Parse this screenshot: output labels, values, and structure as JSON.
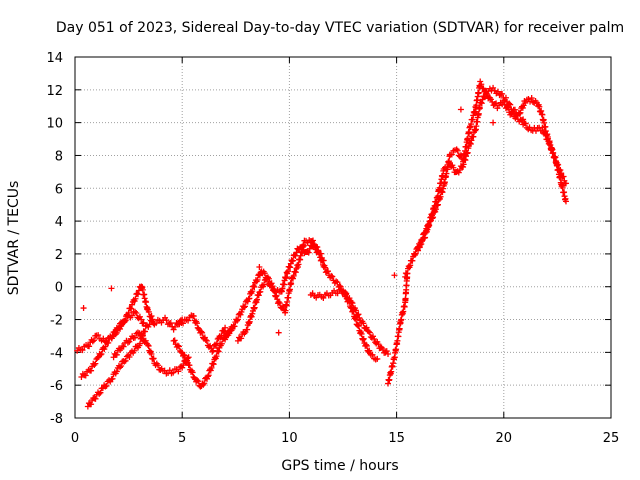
{
  "chart_data": {
    "type": "scatter",
    "title": "Day 051 of 2023, Sidereal Day-to-day VTEC variation (SDTVAR) for receiver palm",
    "xlabel": "GPS time / hours",
    "ylabel": "SDTVAR / TECUs",
    "xlim": [
      0,
      25
    ],
    "ylim": [
      -8,
      14
    ],
    "xticks": [
      0,
      5,
      10,
      15,
      20,
      25
    ],
    "yticks": [
      -8,
      -6,
      -4,
      -2,
      0,
      2,
      4,
      6,
      8,
      10,
      12,
      14
    ],
    "grid": true,
    "marker": "+",
    "color": "#ff0000",
    "series": [
      {
        "name": "SDTVAR",
        "tracks": [
          [
            [
              0.1,
              -3.9
            ],
            [
              0.6,
              -3.6
            ],
            [
              1.0,
              -3.0
            ],
            [
              1.4,
              -3.3
            ],
            [
              1.8,
              -3.0
            ],
            [
              2.3,
              -2.1
            ],
            [
              2.7,
              -1.0
            ],
            [
              3.1,
              0.1
            ],
            [
              3.4,
              -1.5
            ],
            [
              3.7,
              -2.2
            ],
            [
              4.2,
              -2.0
            ],
            [
              4.6,
              -2.5
            ],
            [
              5.0,
              -2.0
            ]
          ],
          [
            [
              0.3,
              -5.5
            ],
            [
              0.7,
              -5.1
            ],
            [
              1.1,
              -4.3
            ],
            [
              1.5,
              -3.4
            ],
            [
              1.9,
              -2.7
            ],
            [
              2.3,
              -2.0
            ],
            [
              2.8,
              -1.6
            ],
            [
              3.2,
              -2.2
            ]
          ],
          [
            [
              0.6,
              -7.3
            ],
            [
              0.9,
              -6.8
            ],
            [
              1.3,
              -6.2
            ],
            [
              1.7,
              -5.6
            ],
            [
              2.0,
              -5.0
            ],
            [
              2.3,
              -4.5
            ],
            [
              2.6,
              -4.1
            ],
            [
              3.0,
              -3.5
            ],
            [
              3.3,
              -2.5
            ],
            [
              3.6,
              -2.1
            ]
          ],
          [
            [
              1.8,
              -4.3
            ],
            [
              2.2,
              -3.6
            ],
            [
              2.6,
              -3.2
            ],
            [
              3.0,
              -2.8
            ],
            [
              3.4,
              -3.6
            ],
            [
              3.7,
              -4.6
            ],
            [
              4.1,
              -5.2
            ],
            [
              4.5,
              -5.2
            ],
            [
              4.9,
              -5.0
            ],
            [
              5.3,
              -4.3
            ]
          ],
          [
            [
              4.6,
              -3.3
            ],
            [
              5.0,
              -4.0
            ],
            [
              5.3,
              -4.8
            ],
            [
              5.6,
              -5.6
            ],
            [
              5.9,
              -6.1
            ],
            [
              6.2,
              -5.4
            ],
            [
              6.5,
              -4.5
            ],
            [
              6.8,
              -3.5
            ],
            [
              7.1,
              -2.9
            ],
            [
              7.4,
              -2.4
            ]
          ],
          [
            [
              4.8,
              -2.3
            ],
            [
              5.2,
              -2.0
            ],
            [
              5.5,
              -1.8
            ],
            [
              5.8,
              -2.6
            ],
            [
              6.1,
              -3.3
            ],
            [
              6.4,
              -3.9
            ],
            [
              6.7,
              -3.2
            ],
            [
              7.0,
              -2.5
            ]
          ],
          [
            [
              7.0,
              -3.1
            ],
            [
              7.4,
              -2.4
            ],
            [
              7.8,
              -1.4
            ],
            [
              8.1,
              -0.7
            ],
            [
              8.4,
              0.2
            ],
            [
              8.7,
              1.0
            ],
            [
              9.0,
              0.5
            ],
            [
              9.3,
              -0.2
            ],
            [
              9.6,
              -0.4
            ],
            [
              9.9,
              0.9
            ],
            [
              10.2,
              1.8
            ],
            [
              10.5,
              2.5
            ],
            [
              10.8,
              2.0
            ],
            [
              11.1,
              2.6
            ],
            [
              11.4,
              1.9
            ],
            [
              11.7,
              1.0
            ],
            [
              12.0,
              0.5
            ],
            [
              12.3,
              0.1
            ],
            [
              12.6,
              -0.6
            ]
          ],
          [
            [
              7.6,
              -3.3
            ],
            [
              8.0,
              -2.6
            ],
            [
              8.3,
              -1.5
            ],
            [
              8.6,
              -0.3
            ],
            [
              8.9,
              0.4
            ],
            [
              9.2,
              0.0
            ],
            [
              9.5,
              -1.0
            ],
            [
              9.8,
              -1.5
            ],
            [
              10.1,
              0.4
            ],
            [
              10.4,
              1.3
            ],
            [
              10.7,
              2.7
            ],
            [
              11.0,
              2.9
            ],
            [
              11.3,
              2.3
            ],
            [
              11.6,
              1.6
            ]
          ],
          [
            [
              11.0,
              -0.5
            ],
            [
              11.5,
              -0.6
            ],
            [
              12.0,
              -0.4
            ],
            [
              12.5,
              -0.2
            ],
            [
              12.9,
              -1.0
            ],
            [
              13.3,
              -2.0
            ],
            [
              13.7,
              -2.8
            ],
            [
              14.0,
              -3.3
            ],
            [
              14.3,
              -3.8
            ],
            [
              14.6,
              -4.1
            ]
          ],
          [
            [
              12.6,
              -0.5
            ],
            [
              12.9,
              -1.3
            ],
            [
              13.2,
              -2.4
            ],
            [
              13.5,
              -3.4
            ],
            [
              13.8,
              -4.2
            ],
            [
              14.1,
              -4.4
            ]
          ],
          [
            [
              14.6,
              -5.9
            ],
            [
              14.9,
              -4.3
            ],
            [
              15.1,
              -2.8
            ],
            [
              15.2,
              -2.0
            ],
            [
              15.4,
              -1.0
            ],
            [
              15.5,
              0.8
            ]
          ],
          [
            [
              15.4,
              0.6
            ],
            [
              15.7,
              1.6
            ],
            [
              16.0,
              2.4
            ],
            [
              16.3,
              3.0
            ],
            [
              16.6,
              4.2
            ],
            [
              16.9,
              5.5
            ],
            [
              17.2,
              7.1
            ],
            [
              17.5,
              7.5
            ],
            [
              17.8,
              6.9
            ],
            [
              18.1,
              7.4
            ],
            [
              18.4,
              8.6
            ],
            [
              18.7,
              9.7
            ],
            [
              18.9,
              11.1
            ],
            [
              19.2,
              11.9
            ],
            [
              19.5,
              12.0
            ],
            [
              19.8,
              11.8
            ],
            [
              20.1,
              11.4
            ],
            [
              20.4,
              10.8
            ],
            [
              20.7,
              10.5
            ],
            [
              21.0,
              11.3
            ],
            [
              21.3,
              11.4
            ],
            [
              21.6,
              11.1
            ],
            [
              21.8,
              10.4
            ],
            [
              22.0,
              9.3
            ],
            [
              22.3,
              8.1
            ],
            [
              22.6,
              7.1
            ],
            [
              22.9,
              6.3
            ]
          ],
          [
            [
              16.0,
              2.2
            ],
            [
              16.3,
              3.3
            ],
            [
              16.6,
              4.0
            ],
            [
              16.9,
              5.0
            ],
            [
              17.2,
              6.1
            ],
            [
              17.5,
              8.1
            ],
            [
              17.8,
              8.3
            ],
            [
              18.1,
              7.7
            ],
            [
              18.4,
              9.6
            ],
            [
              18.7,
              11.0
            ],
            [
              18.9,
              12.4
            ],
            [
              19.1,
              12.0
            ],
            [
              19.4,
              11.3
            ],
            [
              19.7,
              11.0
            ],
            [
              20.0,
              11.2
            ],
            [
              20.3,
              10.6
            ],
            [
              20.6,
              10.3
            ],
            [
              20.9,
              10.0
            ],
            [
              21.2,
              9.6
            ],
            [
              21.5,
              9.6
            ],
            [
              21.8,
              9.6
            ],
            [
              22.1,
              8.8
            ],
            [
              22.4,
              7.8
            ],
            [
              22.7,
              6.2
            ],
            [
              22.9,
              5.2
            ]
          ]
        ],
        "outliers": [
          [
            0.4,
            -1.3
          ],
          [
            1.7,
            -0.1
          ],
          [
            8.6,
            1.2
          ],
          [
            9.5,
            -2.8
          ],
          [
            14.9,
            0.7
          ],
          [
            18.0,
            10.8
          ],
          [
            19.5,
            10.0
          ],
          [
            20.9,
            10.2
          ]
        ]
      }
    ]
  }
}
